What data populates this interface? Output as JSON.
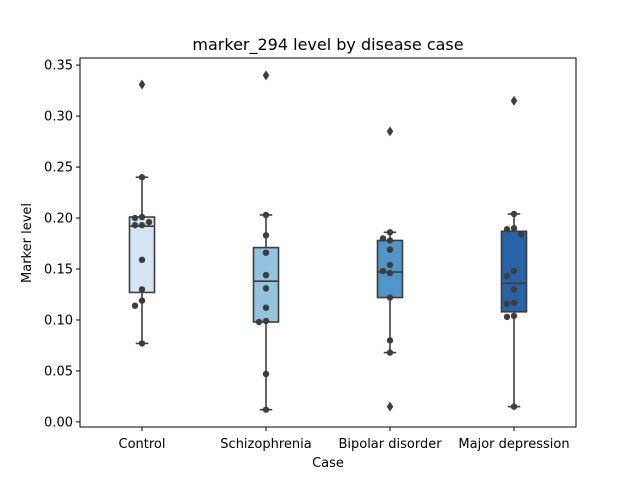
{
  "chart_data": {
    "type": "box",
    "title": "marker_294 level by disease case",
    "xlabel": "Case",
    "ylabel": "Marker level",
    "ylim": [
      -0.005,
      0.357
    ],
    "yticks": [
      "0.00",
      "0.05",
      "0.10",
      "0.15",
      "0.20",
      "0.25",
      "0.30",
      "0.35"
    ],
    "categories": [
      "Control",
      "Schizophrenia",
      "Bipolar disorder",
      "Major depression"
    ],
    "colors": [
      "#d4e4f3",
      "#93c3de",
      "#5096c8",
      "#2764a7"
    ],
    "boxes": [
      {
        "category": "Control",
        "q1": 0.127,
        "median": 0.192,
        "q3": 0.201,
        "whisker_low": 0.077,
        "whisker_high": 0.24,
        "outliers": [
          0.331
        ]
      },
      {
        "category": "Schizophrenia",
        "q1": 0.098,
        "median": 0.138,
        "q3": 0.171,
        "whisker_low": 0.012,
        "whisker_high": 0.203,
        "outliers": [
          0.34
        ]
      },
      {
        "category": "Bipolar disorder",
        "q1": 0.122,
        "median": 0.147,
        "q3": 0.178,
        "whisker_low": 0.068,
        "whisker_high": 0.186,
        "outliers": [
          0.285,
          0.015
        ]
      },
      {
        "category": "Major depression",
        "q1": 0.108,
        "median": 0.136,
        "q3": 0.187,
        "whisker_low": 0.015,
        "whisker_high": 0.204,
        "outliers": [
          0.315
        ]
      }
    ],
    "points": [
      [
        0.24,
        0.201,
        0.2,
        0.196,
        0.193,
        0.193,
        0.159,
        0.13,
        0.119,
        0.114,
        0.077
      ],
      [
        0.203,
        0.183,
        0.166,
        0.144,
        0.131,
        0.112,
        0.099,
        0.098,
        0.047,
        0.012
      ],
      [
        0.186,
        0.18,
        0.178,
        0.169,
        0.154,
        0.148,
        0.146,
        0.122,
        0.08,
        0.068
      ],
      [
        0.204,
        0.19,
        0.189,
        0.184,
        0.148,
        0.143,
        0.13,
        0.117,
        0.116,
        0.104,
        0.103,
        0.015
      ]
    ]
  }
}
